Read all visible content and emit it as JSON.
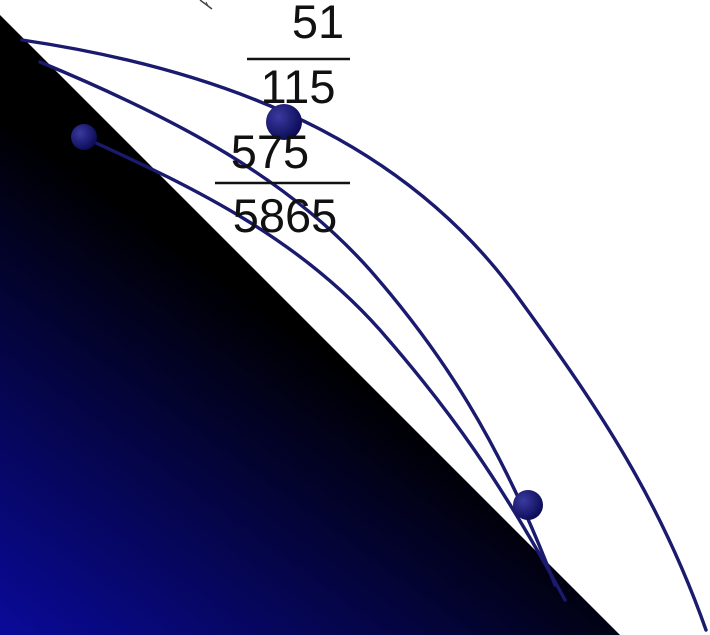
{
  "fractions": [
    {
      "numerator": "51",
      "denominator": "115"
    },
    {
      "numerator": "575",
      "denominator": "5865"
    }
  ],
  "colors": {
    "background": "#ffffff",
    "curve_stroke": "#1a1a6e",
    "point_fill": "#121270",
    "triangle_dark": "#000000",
    "triangle_blue": "#0a0a9a",
    "fraction_text": "#111111"
  },
  "icons": [
    "cursor-icon"
  ]
}
